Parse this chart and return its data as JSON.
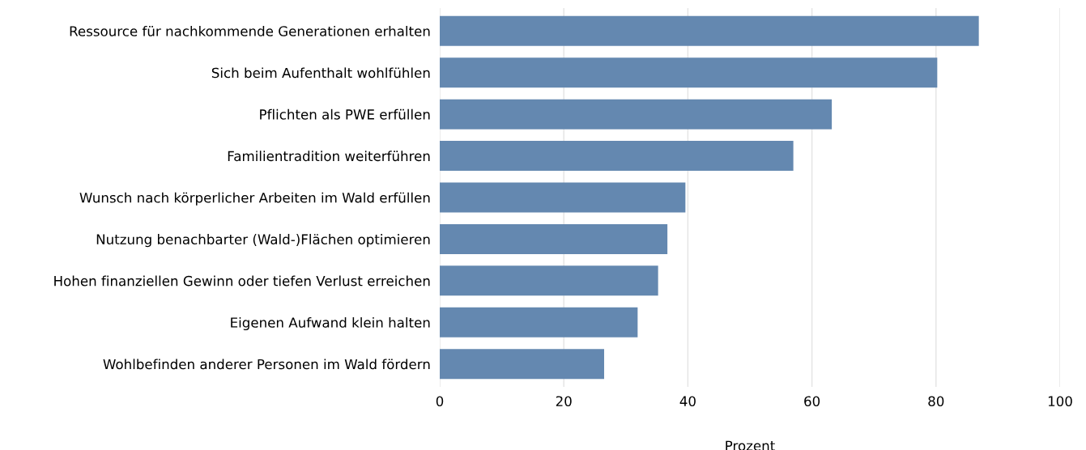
{
  "chart_data": {
    "type": "bar",
    "orientation": "horizontal",
    "xlabel": "Prozent",
    "categories": [
      "Ressource für nachkommende Generationen erhalten",
      "Sich beim Aufenthalt wohlfühlen",
      "Pflichten als PWE erfüllen",
      "Familientradition weiterführen",
      "Wunsch nach körperlicher Arbeiten im Wald erfüllen",
      "Nutzung benachbarter (Wald-)Flächen optimieren",
      "Hohen finanziellen Gewinn oder tiefen Verlust erreichen",
      "Eigenen Aufwand klein halten",
      "Wohlbefinden anderer Personen im Wald fördern"
    ],
    "values": [
      86.9,
      80.2,
      63.2,
      57.0,
      39.6,
      36.7,
      35.2,
      31.9,
      26.5
    ],
    "color": "#6488b0",
    "xlim": [
      0,
      100
    ],
    "xticks": [
      0,
      20,
      40,
      60,
      80,
      100
    ],
    "grid": "x",
    "legend": false
  }
}
